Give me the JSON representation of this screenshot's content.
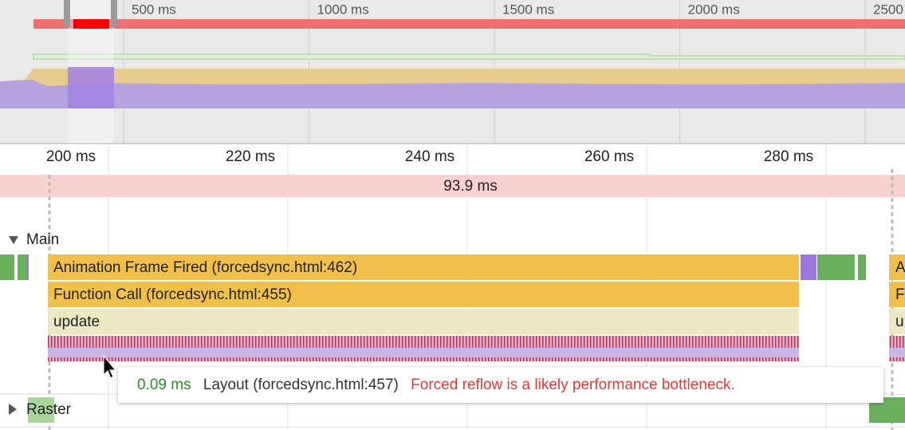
{
  "overview": {
    "ticks": [
      "500 ms",
      "1000 ms",
      "1500 ms",
      "2000 ms",
      "2500 ms"
    ]
  },
  "ruler": {
    "ticks": [
      "200 ms",
      "220 ms",
      "240 ms",
      "260 ms",
      "280 ms"
    ]
  },
  "frame": {
    "duration": "93.9 ms"
  },
  "main": {
    "label": "Main",
    "entries": [
      "Animation Frame Fired (forcedsync.html:462)",
      "Function Call (forcedsync.html:455)",
      "update"
    ],
    "cut_entries": [
      "A",
      "F",
      "u"
    ]
  },
  "tooltip": {
    "time": "0.09 ms",
    "name": "Layout (forcedsync.html:457)",
    "warning": "Forced reflow is a likely performance bottleneck."
  },
  "raster": {
    "label": "Raster"
  }
}
